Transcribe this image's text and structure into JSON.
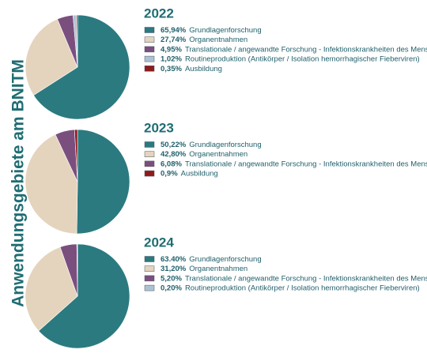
{
  "title": "Anwendungsgebiete am BNITM",
  "chart_data": [
    {
      "type": "pie",
      "title": "2022",
      "categories": [
        "Grundlagenforschung",
        "Organentnahmen",
        "Translationale / angewandte Forschung - Infektionskrankheiten des Menschen",
        "Routineproduktion (Antikörper / Isolation hemorrhagischer Fieberviren)",
        "Ausbildung"
      ],
      "values": [
        65.94,
        27.74,
        4.95,
        1.02,
        0.35
      ],
      "value_labels": [
        "65,94%",
        "27,74%",
        "4,95%",
        "1,02%",
        "0,35%"
      ],
      "colors": [
        "#2b7a80",
        "#e4d4be",
        "#7a4f7e",
        "#aac3d3",
        "#8e1b1b"
      ]
    },
    {
      "type": "pie",
      "title": "2023",
      "categories": [
        "Grundlagenforschung",
        "Organentnahmen",
        "Translationale / angewandte Forschung - Infektionskrankheiten des Menschen",
        "Ausbildung"
      ],
      "values": [
        50.22,
        42.8,
        6.08,
        0.9
      ],
      "value_labels": [
        "50,22%",
        "42,80%",
        "6,08%",
        "0,9%"
      ],
      "colors": [
        "#2b7a80",
        "#e4d4be",
        "#7a4f7e",
        "#8e1b1b"
      ]
    },
    {
      "type": "pie",
      "title": "2024",
      "categories": [
        "Grundlagenforschung",
        "Organentnahmen",
        "Translationale / angewandte Forschung - Infektionskrankheiten des Menschen",
        "Routineproduktion (Antikörper / Isolation hemorrhagischer Fieberviren)"
      ],
      "values": [
        63.4,
        31.2,
        5.2,
        0.2
      ],
      "value_labels": [
        "63.40%",
        "31,20%",
        "5,20%",
        "0,20%"
      ],
      "colors": [
        "#2b7a80",
        "#e4d4be",
        "#7a4f7e",
        "#aac3d3"
      ]
    }
  ]
}
